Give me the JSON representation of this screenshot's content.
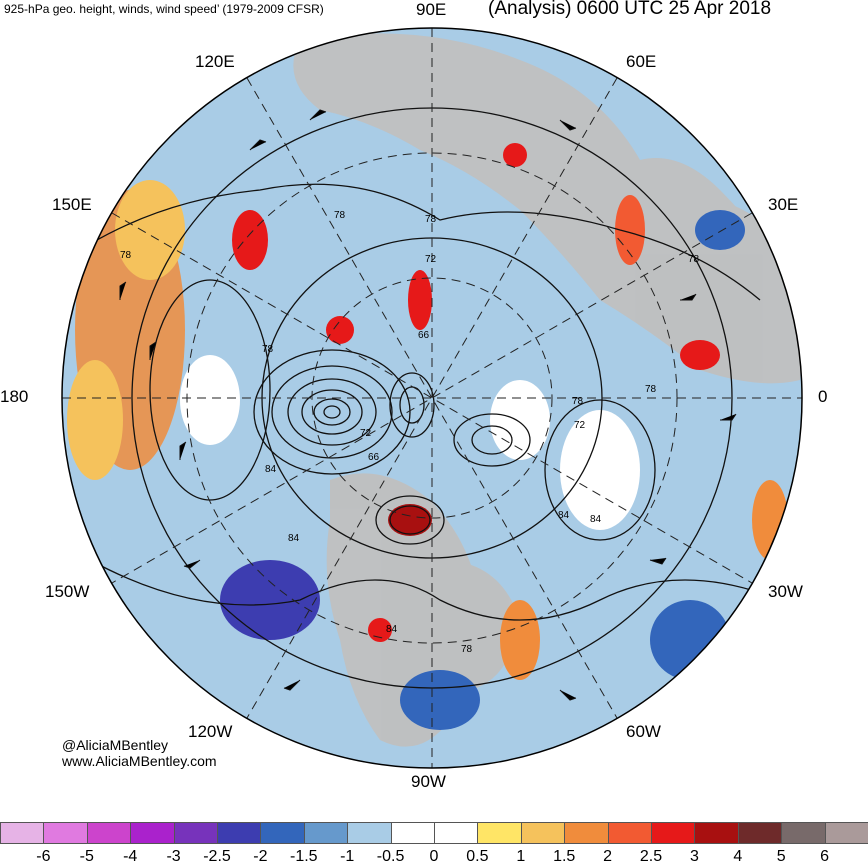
{
  "title": {
    "left": "925-hPa geo. height, winds, wind speed’ (1979-2009 CFSR)",
    "right": "(Analysis) 0600 UTC 25 Apr 2018"
  },
  "longitude_labels": {
    "top": "90E",
    "upper_left_1": "120E",
    "upper_left_2": "150E",
    "left": "180",
    "lower_left_1": "150W",
    "lower_left_2": "120W",
    "bottom": "90W",
    "lower_right_1": "60W",
    "lower_right_2": "30W",
    "right": "0",
    "upper_right_2": "30E",
    "upper_right_1": "60E"
  },
  "contour_labels": [
    "78",
    "78",
    "78",
    "78",
    "72",
    "66",
    "72",
    "66",
    "72",
    "78",
    "78",
    "78",
    "84",
    "84",
    "84",
    "84",
    "84",
    "78"
  ],
  "credits": {
    "twitter": "@AliciaMBentley",
    "website": "www.AliciaMBentley.com"
  },
  "colorbar": {
    "colors": [
      "#e6b3e6",
      "#e07ae0",
      "#cc44cc",
      "#aa22cc",
      "#7733bb",
      "#3d3db0",
      "#3366bb",
      "#6699cc",
      "#a9cce6",
      "#ffffff",
      "#ffffff",
      "#ffe566",
      "#f5c25c",
      "#f08c3c",
      "#f25a32",
      "#e61919",
      "#a81010",
      "#6e2a2a",
      "#786a6a",
      "#aa9a9a"
    ],
    "ticks": [
      "-6",
      "-5",
      "-4",
      "-3",
      "-2.5",
      "-2",
      "-1.5",
      "-1",
      "-0.5",
      "0",
      "0.5",
      "1",
      "1.5",
      "2",
      "2.5",
      "3",
      "4",
      "5",
      "6"
    ]
  }
}
